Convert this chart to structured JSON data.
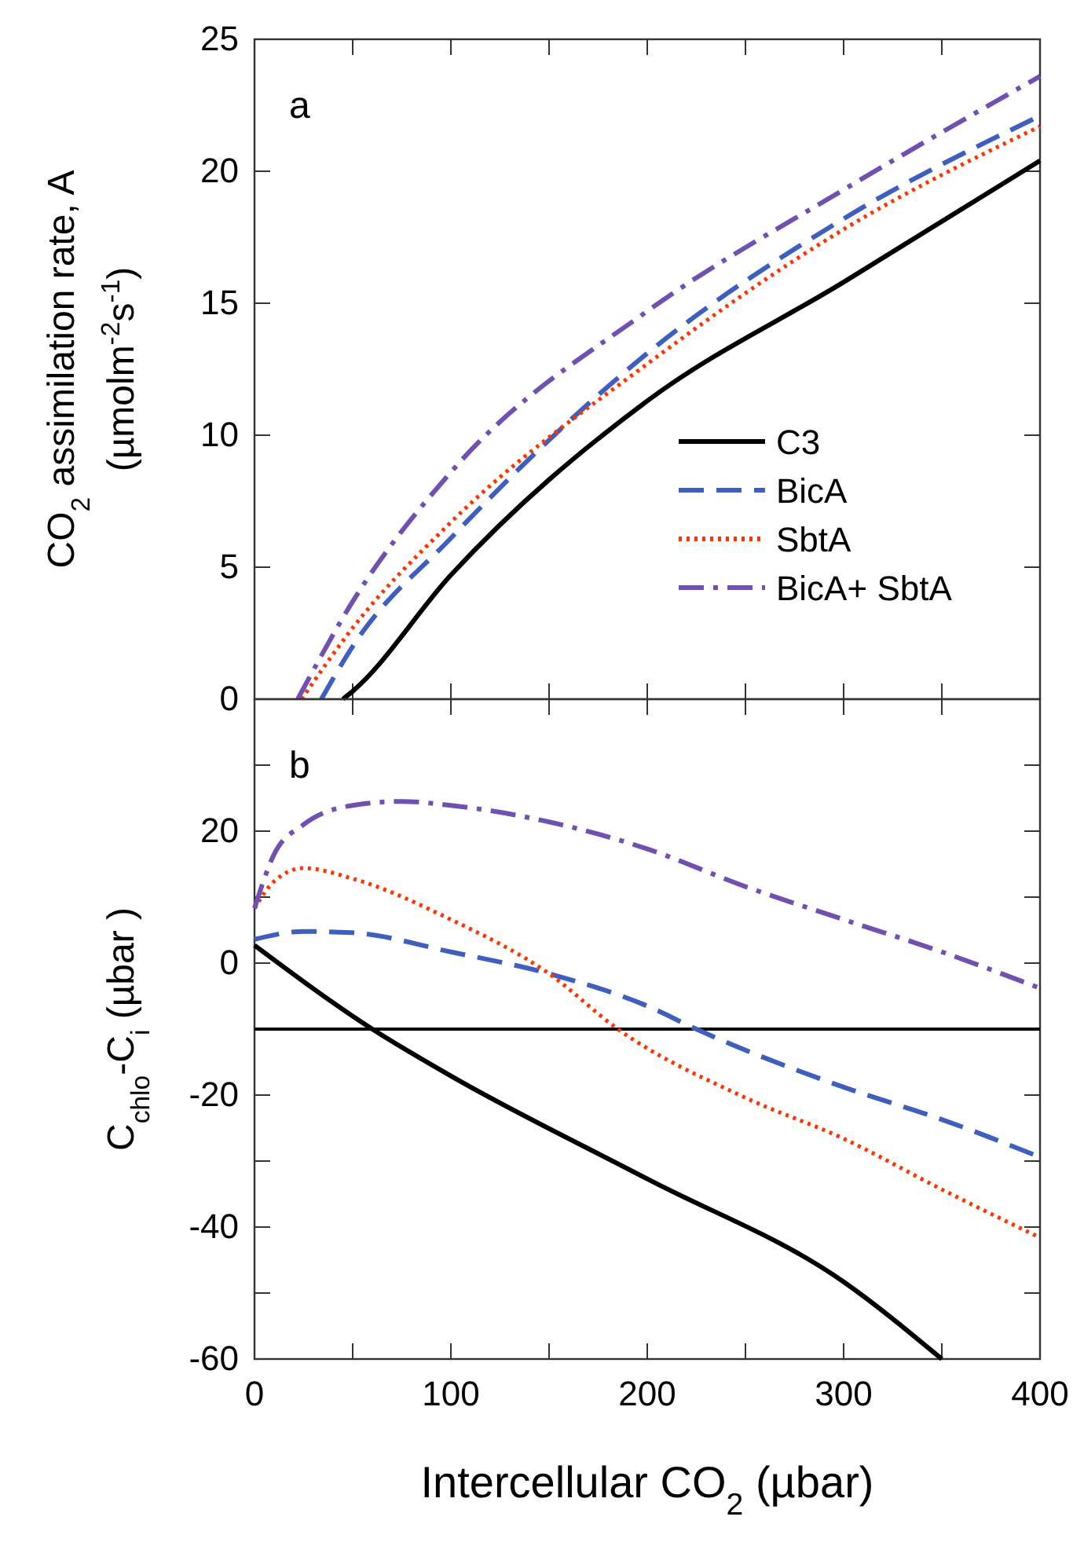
{
  "chart_data": [
    {
      "type": "line",
      "ylabel": "CO$_{2}$ assimilation rate, A\n(µmolm$^{-2}$s$^{-1}$)",
      "annotations": [
        "a"
      ],
      "xlim": [
        0,
        400
      ],
      "ylim": [
        0,
        25
      ],
      "xticks": [
        0,
        {
          "value": 50,
          "label": null
        },
        100,
        {
          "value": 150,
          "label": null
        },
        200,
        {
          "value": 250,
          "label": null
        },
        300,
        {
          "value": 350,
          "label": null
        },
        400
      ],
      "yticks": [
        0,
        5,
        10,
        15,
        20,
        25
      ],
      "tick_labels": "y",
      "legend": "bottom right",
      "series": [
        {
          "name": "C3",
          "color": "#000000",
          "line_style": "solid",
          "x": [
            45,
            50,
            100,
            200,
            300,
            400
          ],
          "values": [
            0,
            0.3,
            4.7,
            11.3,
            15.8,
            20.4
          ]
        },
        {
          "name": "BicA",
          "color": "#3f5fbf",
          "line_style": "dashed",
          "x": [
            34,
            50,
            100,
            200,
            300,
            400
          ],
          "values": [
            0,
            2.0,
            6.1,
            13.1,
            18.2,
            22.1
          ]
        },
        {
          "name": "SbtA",
          "color": "#ff3300",
          "line_style": "dotted",
          "x": [
            24,
            50,
            100,
            200,
            300,
            400
          ],
          "values": [
            0,
            2.7,
            6.7,
            12.7,
            17.8,
            21.7
          ]
        },
        {
          "name": "BicA+ SbtA",
          "color": "#7050b0",
          "line_style": "dashdot",
          "x": [
            22,
            50,
            100,
            200,
            300,
            400
          ],
          "values": [
            0,
            3.7,
            8.6,
            14.7,
            19.3,
            23.6
          ]
        }
      ]
    },
    {
      "type": "line",
      "xlabel": "Intercellular CO$_{2}$ (µbar)",
      "ylabel": "C$_{chlo}$-C$_{i}$  (µbar )",
      "annotations": [
        "b"
      ],
      "xlim": [
        0,
        400
      ],
      "ylim": [
        -60,
        40
      ],
      "xticks": [
        0,
        {
          "value": 50,
          "label": null
        },
        100,
        {
          "value": 150,
          "label": null
        },
        200,
        {
          "value": 250,
          "label": null
        },
        300,
        {
          "value": 350,
          "label": null
        },
        400
      ],
      "yticks": [
        -60,
        {
          "value": -50,
          "label": null
        },
        -40,
        {
          "value": -30,
          "label": null
        },
        -20,
        {
          "value": -10,
          "label": null
        },
        0,
        {
          "value": 10,
          "label": null
        },
        20,
        {
          "value": 30,
          "label": null
        }
      ],
      "ref_lines": [
        {
          "axis": "y",
          "value": -10,
          "color": "#000000"
        }
      ],
      "series": [
        {
          "color": "#000000",
          "line_style": "solid",
          "x": [
            0,
            60,
            100,
            200,
            300,
            350
          ],
          "values": [
            2.7,
            -10,
            -17.1,
            -32.7,
            -48.3,
            -60
          ]
        },
        {
          "color": "#3f5fbf",
          "line_style": "dashed",
          "x": [
            0,
            25,
            50,
            100,
            150,
            200,
            225,
            300,
            350,
            400
          ],
          "values": [
            3.6,
            4.8,
            4.6,
            1.7,
            -1.6,
            -6.5,
            -10,
            -18.8,
            -23.7,
            -29.4
          ]
        },
        {
          "color": "#ff3300",
          "line_style": "dotted",
          "x": [
            0,
            10,
            25,
            50,
            100,
            150,
            185,
            250,
            300,
            350,
            400
          ],
          "values": [
            8.3,
            12.4,
            14.4,
            12.8,
            6.6,
            -1.6,
            -10,
            -20.4,
            -26.6,
            -34.3,
            -41.6
          ]
        },
        {
          "color": "#7050b0",
          "line_style": "dashdot",
          "x": [
            0,
            10,
            25,
            50,
            75,
            100,
            150,
            200,
            250,
            300,
            350,
            400
          ],
          "values": [
            8.3,
            16.5,
            21,
            23.9,
            24.5,
            23.9,
            21.4,
            17.3,
            11.6,
            6.6,
            1.7,
            -3.8
          ]
        }
      ]
    }
  ]
}
